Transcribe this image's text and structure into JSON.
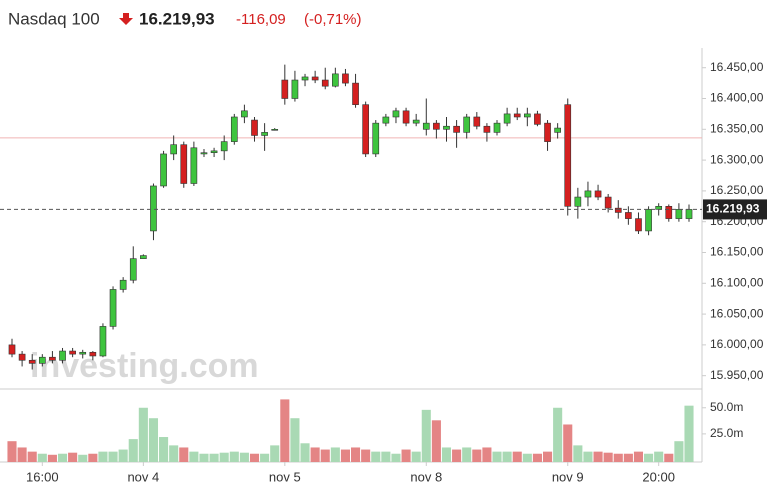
{
  "header": {
    "name": "Nasdaq 100",
    "price": "16.219,93",
    "change": "-116,09",
    "change_pct": "(-0,71%)"
  },
  "chart_data": {
    "type": "candlestick",
    "watermark": "investing.com",
    "categories": [
      null,
      null,
      null,
      "16:00",
      null,
      null,
      null,
      null,
      null,
      null,
      null,
      null,
      null,
      "nov 4",
      null,
      null,
      null,
      null,
      null,
      null,
      null,
      null,
      null,
      null,
      null,
      null,
      null,
      "nov 5",
      null,
      null,
      null,
      null,
      null,
      null,
      null,
      null,
      null,
      null,
      null,
      null,
      null,
      "nov 8",
      null,
      null,
      null,
      null,
      null,
      null,
      null,
      null,
      null,
      null,
      null,
      null,
      null,
      "nov 9",
      null,
      null,
      null,
      null,
      null,
      null,
      null,
      null,
      "20:00",
      null,
      null,
      null
    ],
    "open": [
      16000,
      15985,
      15975,
      15970,
      15980,
      15975,
      15990,
      15985,
      15988,
      15982,
      16030,
      16090,
      16105,
      16140,
      16185,
      16258,
      16310,
      16325,
      16262,
      16310,
      16312,
      16315,
      16330,
      16370,
      16365,
      16340,
      16350,
      16430,
      16400,
      16430,
      16435,
      16430,
      16420,
      16440,
      16425,
      16390,
      16310,
      16360,
      16370,
      16380,
      16360,
      16350,
      16360,
      16350,
      16355,
      16345,
      16370,
      16355,
      16345,
      16360,
      16375,
      16370,
      16375,
      16360,
      16345,
      16390,
      16225,
      16240,
      16250,
      16240,
      16222,
      16215,
      16205,
      16185,
      16220,
      16225,
      16205,
      16205
    ],
    "high": [
      16010,
      15990,
      15985,
      15985,
      15990,
      15995,
      15995,
      15992,
      15990,
      16035,
      16095,
      16110,
      16160,
      16147,
      16262,
      16315,
      16340,
      16330,
      16330,
      16318,
      16320,
      16340,
      16375,
      16390,
      16370,
      16360,
      16352,
      16455,
      16445,
      16440,
      16445,
      16450,
      16450,
      16448,
      16440,
      16395,
      16365,
      16375,
      16385,
      16385,
      16375,
      16400,
      16365,
      16370,
      16365,
      16375,
      16378,
      16360,
      16365,
      16385,
      16385,
      16385,
      16380,
      16365,
      16360,
      16400,
      16255,
      16265,
      16260,
      16245,
      16235,
      16225,
      16215,
      16225,
      16230,
      16228,
      16230,
      16228
    ],
    "low": [
      15980,
      15965,
      15960,
      15965,
      15970,
      15970,
      15980,
      15978,
      15975,
      15980,
      16025,
      16085,
      16100,
      16140,
      16170,
      16255,
      16300,
      16255,
      16258,
      16305,
      16305,
      16300,
      16325,
      16360,
      16330,
      16315,
      16348,
      16390,
      16395,
      16420,
      16425,
      16415,
      16418,
      16420,
      16385,
      16305,
      16305,
      16355,
      16360,
      16355,
      16355,
      16340,
      16335,
      16330,
      16320,
      16335,
      16350,
      16330,
      16340,
      16355,
      16365,
      16355,
      16355,
      16315,
      16335,
      16210,
      16205,
      16225,
      16235,
      16215,
      16205,
      16195,
      16180,
      16178,
      16210,
      16200,
      16200,
      16200
    ],
    "close": [
      15985,
      15975,
      15970,
      15980,
      15975,
      15990,
      15985,
      15988,
      15982,
      16030,
      16090,
      16105,
      16140,
      16145,
      16258,
      16310,
      16325,
      16262,
      16320,
      16312,
      16315,
      16330,
      16370,
      16380,
      16340,
      16345,
      16350,
      16400,
      16430,
      16435,
      16430,
      16420,
      16440,
      16425,
      16390,
      16310,
      16360,
      16370,
      16380,
      16360,
      16365,
      16360,
      16350,
      16355,
      16345,
      16370,
      16355,
      16345,
      16360,
      16375,
      16370,
      16375,
      16358,
      16330,
      16352,
      16225,
      16240,
      16250,
      16240,
      16222,
      16215,
      16205,
      16185,
      16220,
      16225,
      16205,
      16220,
      16219.93
    ],
    "volume": [
      18,
      12,
      8,
      6,
      5,
      6,
      7,
      5,
      6,
      8,
      8,
      10,
      20,
      50,
      40,
      22,
      14,
      12,
      8,
      6,
      6,
      7,
      8,
      7,
      6,
      6,
      14,
      58,
      40,
      16,
      12,
      10,
      12,
      10,
      12,
      10,
      8,
      8,
      6,
      10,
      8,
      48,
      38,
      12,
      10,
      12,
      10,
      12,
      8,
      8,
      8,
      6,
      6,
      8,
      50,
      34,
      14,
      8,
      8,
      7,
      6,
      6,
      8,
      6,
      8,
      6,
      18,
      52
    ],
    "up_color": "#3ec43e",
    "down_color": "#d42020",
    "volume_up_color": "#a9d9b4",
    "volume_down_color": "#e48585",
    "prev_close": 16336.02,
    "ylim": [
      15930,
      16482
    ],
    "yticks": [
      {
        "value": 15950,
        "label": "15.950,00"
      },
      {
        "value": 16000,
        "label": "16.000,00"
      },
      {
        "value": 16050,
        "label": "16.050,00"
      },
      {
        "value": 16100,
        "label": "16.100,00"
      },
      {
        "value": 16150,
        "label": "16.150,00"
      },
      {
        "value": 16200,
        "label": "16.200,00"
      },
      {
        "value": 16250,
        "label": "16.250,00"
      },
      {
        "value": 16300,
        "label": "16.300,00"
      },
      {
        "value": 16350,
        "label": "16.350,00"
      },
      {
        "value": 16400,
        "label": "16.400,00"
      },
      {
        "value": 16450,
        "label": "16.450,00"
      }
    ],
    "y2lim": [
      0,
      67
    ],
    "y2ticks": [
      {
        "value": 25,
        "label": "25.0m"
      },
      {
        "value": 50,
        "label": "50.0m"
      }
    ]
  }
}
